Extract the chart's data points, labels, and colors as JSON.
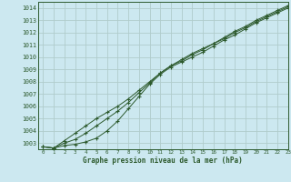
{
  "background_color": "#cce8f0",
  "grid_color": "#b0cccc",
  "line_color": "#2d5a2d",
  "xlabel": "Graphe pression niveau de la mer (hPa)",
  "xlim": [
    -0.5,
    23
  ],
  "ylim": [
    1002.5,
    1014.5
  ],
  "yticks": [
    1003,
    1004,
    1005,
    1006,
    1007,
    1008,
    1009,
    1010,
    1011,
    1012,
    1013,
    1014
  ],
  "xticks": [
    0,
    1,
    2,
    3,
    4,
    5,
    6,
    7,
    8,
    9,
    10,
    11,
    12,
    13,
    14,
    15,
    16,
    17,
    18,
    19,
    20,
    21,
    22,
    23
  ],
  "series": [
    [
      1002.7,
      1002.6,
      1002.8,
      1002.9,
      1003.1,
      1003.4,
      1004.0,
      1004.8,
      1005.8,
      1006.8,
      1007.8,
      1008.6,
      1009.2,
      1009.6,
      1010.0,
      1010.4,
      1010.9,
      1011.4,
      1011.8,
      1012.3,
      1012.8,
      1013.2,
      1013.6,
      1014.0
    ],
    [
      1002.7,
      1002.6,
      1003.0,
      1003.3,
      1003.8,
      1004.4,
      1005.0,
      1005.6,
      1006.3,
      1007.1,
      1007.9,
      1008.7,
      1009.3,
      1009.7,
      1010.2,
      1010.6,
      1011.1,
      1011.5,
      1012.0,
      1012.4,
      1012.9,
      1013.3,
      1013.7,
      1014.1
    ],
    [
      1002.7,
      1002.6,
      1003.2,
      1003.8,
      1004.4,
      1005.0,
      1005.5,
      1006.0,
      1006.6,
      1007.3,
      1008.0,
      1008.7,
      1009.3,
      1009.8,
      1010.3,
      1010.7,
      1011.1,
      1011.6,
      1012.1,
      1012.5,
      1013.0,
      1013.4,
      1013.8,
      1014.2
    ]
  ]
}
